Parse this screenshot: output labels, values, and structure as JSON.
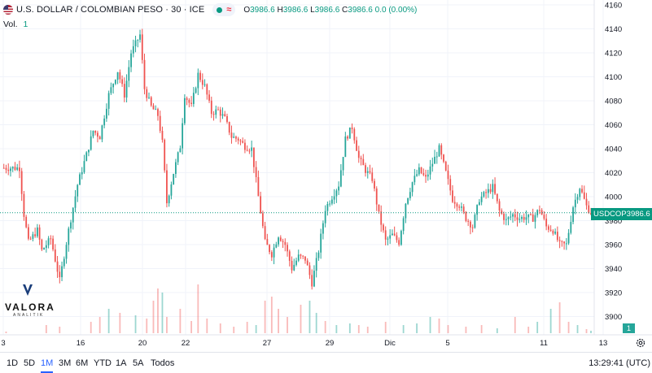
{
  "legend": {
    "title": "U.S. DOLLAR / COLOMBIAN PESO · 30 · ICE",
    "open_label": "O",
    "open": "3986.6",
    "high_label": "H",
    "high": "3986.6",
    "low_label": "L",
    "low": "3986.6",
    "close_label": "C",
    "close": "3986.6",
    "change": "0.0 (0.00%)",
    "status_symbol": "≈"
  },
  "volume": {
    "label": "Vol.",
    "value": "1"
  },
  "logo": {
    "name": "VALORA",
    "sub": "ANALITIK"
  },
  "price_tag": {
    "symbol": "USDCOP",
    "value": "3986.6"
  },
  "volume_tag": "1",
  "timeframes": [
    "1D",
    "5D",
    "1M",
    "3M",
    "6M",
    "YTD",
    "1A",
    "5A",
    "Todos"
  ],
  "active_timeframe": "1M",
  "clock": "13:29:41 (UTC)",
  "colors": {
    "up": "#26a69a",
    "down": "#ef5350",
    "line": "#089981",
    "active": "#2962ff"
  },
  "chart_data": {
    "type": "candlestick",
    "symbol": "USDCOP",
    "interval": "30",
    "y_ticks": [
      4160,
      4140,
      4120,
      4100,
      4080,
      4060,
      4040,
      4020,
      4000,
      3980,
      3960,
      3940,
      3920,
      3900
    ],
    "x_ticks": [
      "3",
      "16",
      "20",
      "22",
      "27",
      "29",
      "Dic",
      "5",
      "11",
      "13"
    ],
    "ylim": [
      3885,
      4162
    ],
    "last_price": 3986.6,
    "ohlc_path": [
      [
        0,
        4024
      ],
      [
        8,
        4024
      ],
      [
        10,
        3985
      ],
      [
        12,
        3962
      ],
      [
        16,
        3972
      ],
      [
        18,
        3955
      ],
      [
        22,
        3965
      ],
      [
        26,
        3930
      ],
      [
        30,
        3972
      ],
      [
        34,
        4010
      ],
      [
        38,
        4035
      ],
      [
        41,
        4055
      ],
      [
        44,
        4050
      ],
      [
        48,
        4085
      ],
      [
        52,
        4105
      ],
      [
        55,
        4085
      ],
      [
        58,
        4120
      ],
      [
        62,
        4135
      ],
      [
        64,
        4090
      ],
      [
        67,
        4075
      ],
      [
        70,
        4068
      ],
      [
        72,
        4045
      ],
      [
        74,
        3995
      ],
      [
        77,
        4020
      ],
      [
        80,
        4042
      ],
      [
        82,
        4085
      ],
      [
        85,
        4075
      ],
      [
        88,
        4102
      ],
      [
        91,
        4092
      ],
      [
        94,
        4070
      ],
      [
        97,
        4072
      ],
      [
        100,
        4065
      ],
      [
        103,
        4050
      ],
      [
        106,
        4048
      ],
      [
        109,
        4042
      ],
      [
        112,
        4040
      ],
      [
        115,
        4000
      ],
      [
        118,
        3962
      ],
      [
        121,
        3952
      ],
      [
        124,
        3968
      ],
      [
        127,
        3960
      ],
      [
        130,
        3940
      ],
      [
        133,
        3950
      ],
      [
        136,
        3948
      ],
      [
        139,
        3928
      ],
      [
        142,
        3955
      ],
      [
        145,
        3990
      ],
      [
        148,
        4000
      ],
      [
        151,
        4010
      ],
      [
        154,
        4048
      ],
      [
        157,
        4058
      ],
      [
        160,
        4032
      ],
      [
        163,
        4022
      ],
      [
        166,
        4015
      ],
      [
        169,
        3985
      ],
      [
        172,
        3963
      ],
      [
        175,
        3968
      ],
      [
        178,
        3962
      ],
      [
        181,
        3995
      ],
      [
        184,
        4012
      ],
      [
        187,
        4022
      ],
      [
        190,
        4015
      ],
      [
        193,
        4028
      ],
      [
        196,
        4040
      ],
      [
        199,
        4020
      ],
      [
        202,
        3998
      ],
      [
        205,
        3993
      ],
      [
        208,
        3982
      ],
      [
        211,
        3975
      ],
      [
        214,
        3998
      ],
      [
        217,
        4003
      ],
      [
        220,
        4008
      ],
      [
        223,
        3988
      ],
      [
        226,
        3980
      ],
      [
        229,
        3985
      ],
      [
        232,
        3982
      ],
      [
        235,
        3983
      ],
      [
        238,
        3982
      ],
      [
        241,
        3990
      ],
      [
        244,
        3975
      ],
      [
        247,
        3972
      ],
      [
        250,
        3960
      ],
      [
        253,
        3960
      ],
      [
        256,
        3992
      ],
      [
        259,
        4008
      ],
      [
        262,
        3992
      ],
      [
        264,
        3986.6
      ]
    ],
    "volume_bars": [
      [
        2,
        2
      ],
      [
        20,
        10
      ],
      [
        26,
        8
      ],
      [
        40,
        14
      ],
      [
        44,
        20
      ],
      [
        48,
        30
      ],
      [
        53,
        25
      ],
      [
        60,
        22
      ],
      [
        65,
        18
      ],
      [
        68,
        40
      ],
      [
        70,
        55
      ],
      [
        72,
        50
      ],
      [
        74,
        20
      ],
      [
        80,
        30
      ],
      [
        85,
        15
      ],
      [
        88,
        60
      ],
      [
        92,
        18
      ],
      [
        98,
        12
      ],
      [
        104,
        8
      ],
      [
        110,
        14
      ],
      [
        114,
        10
      ],
      [
        118,
        40
      ],
      [
        121,
        45
      ],
      [
        124,
        30
      ],
      [
        128,
        20
      ],
      [
        134,
        35
      ],
      [
        138,
        40
      ],
      [
        141,
        25
      ],
      [
        145,
        15
      ],
      [
        150,
        10
      ],
      [
        156,
        12
      ],
      [
        160,
        10
      ],
      [
        164,
        8
      ],
      [
        172,
        14
      ],
      [
        180,
        10
      ],
      [
        186,
        12
      ],
      [
        192,
        20
      ],
      [
        196,
        18
      ],
      [
        200,
        10
      ],
      [
        208,
        8
      ],
      [
        215,
        10
      ],
      [
        222,
        6
      ],
      [
        230,
        20
      ],
      [
        236,
        8
      ],
      [
        240,
        14
      ],
      [
        246,
        30
      ],
      [
        250,
        38
      ],
      [
        254,
        14
      ],
      [
        258,
        10
      ],
      [
        262,
        5
      ],
      [
        264,
        3
      ]
    ]
  }
}
